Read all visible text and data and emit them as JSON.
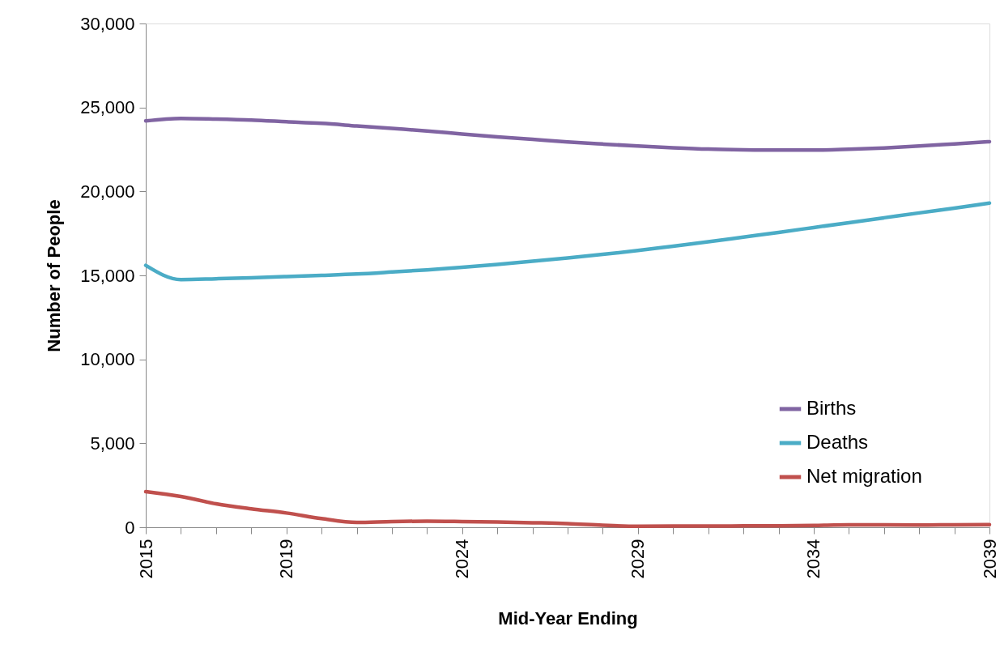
{
  "chart_data": {
    "type": "line",
    "xlabel": "Mid-Year Ending",
    "ylabel": "Number of People",
    "x": [
      2015,
      2016,
      2017,
      2018,
      2019,
      2020,
      2021,
      2022,
      2023,
      2024,
      2025,
      2026,
      2027,
      2028,
      2029,
      2030,
      2031,
      2032,
      2033,
      2034,
      2035,
      2036,
      2037,
      2038,
      2039
    ],
    "series": [
      {
        "name": "Births",
        "color": "#8064a2",
        "values": [
          24200,
          24350,
          24310,
          24250,
          24150,
          24050,
          23900,
          23750,
          23600,
          23420,
          23250,
          23100,
          22950,
          22820,
          22700,
          22600,
          22520,
          22480,
          22460,
          22460,
          22510,
          22590,
          22700,
          22830,
          22960
        ]
      },
      {
        "name": "Deaths",
        "color": "#4bacc6",
        "values": [
          15600,
          14750,
          14800,
          14860,
          14930,
          15000,
          15080,
          15200,
          15330,
          15480,
          15650,
          15840,
          16040,
          16250,
          16480,
          16740,
          17000,
          17280,
          17560,
          17850,
          18140,
          18430,
          18720,
          19000,
          19300
        ]
      },
      {
        "name": "Net migration",
        "color": "#c0504d",
        "values": [
          2120,
          1830,
          1400,
          1100,
          850,
          520,
          290,
          340,
          360,
          340,
          310,
          270,
          220,
          120,
          60,
          70,
          70,
          80,
          90,
          110,
          140,
          140,
          130,
          150,
          160
        ]
      }
    ],
    "xlim": [
      2015,
      2039
    ],
    "xticks": [
      {
        "value": 2015,
        "label": "2015"
      },
      {
        "value": 2016,
        "label": null
      },
      {
        "value": 2017,
        "label": null
      },
      {
        "value": 2018,
        "label": null
      },
      {
        "value": 2019,
        "label": "2019"
      },
      {
        "value": 2020,
        "label": null
      },
      {
        "value": 2021,
        "label": null
      },
      {
        "value": 2022,
        "label": null
      },
      {
        "value": 2023,
        "label": null
      },
      {
        "value": 2024,
        "label": "2024"
      },
      {
        "value": 2025,
        "label": null
      },
      {
        "value": 2026,
        "label": null
      },
      {
        "value": 2027,
        "label": null
      },
      {
        "value": 2028,
        "label": null
      },
      {
        "value": 2029,
        "label": "2029"
      },
      {
        "value": 2030,
        "label": null
      },
      {
        "value": 2031,
        "label": null
      },
      {
        "value": 2032,
        "label": null
      },
      {
        "value": 2033,
        "label": null
      },
      {
        "value": 2034,
        "label": "2034"
      },
      {
        "value": 2035,
        "label": null
      },
      {
        "value": 2036,
        "label": null
      },
      {
        "value": 2037,
        "label": null
      },
      {
        "value": 2038,
        "label": null
      },
      {
        "value": 2039,
        "label": "2039"
      }
    ],
    "ylim": [
      0,
      30000
    ],
    "yticks": [
      {
        "value": 0,
        "label": "0"
      },
      {
        "value": 5000,
        "label": "5,000"
      },
      {
        "value": 10000,
        "label": "10,000"
      },
      {
        "value": 15000,
        "label": "15,000"
      },
      {
        "value": 20000,
        "label": "20,000"
      },
      {
        "value": 25000,
        "label": "25,000"
      },
      {
        "value": 30000,
        "label": "30,000"
      }
    ],
    "grid": false,
    "legend": "bottom right",
    "marker": "none",
    "line_style": "solid"
  }
}
